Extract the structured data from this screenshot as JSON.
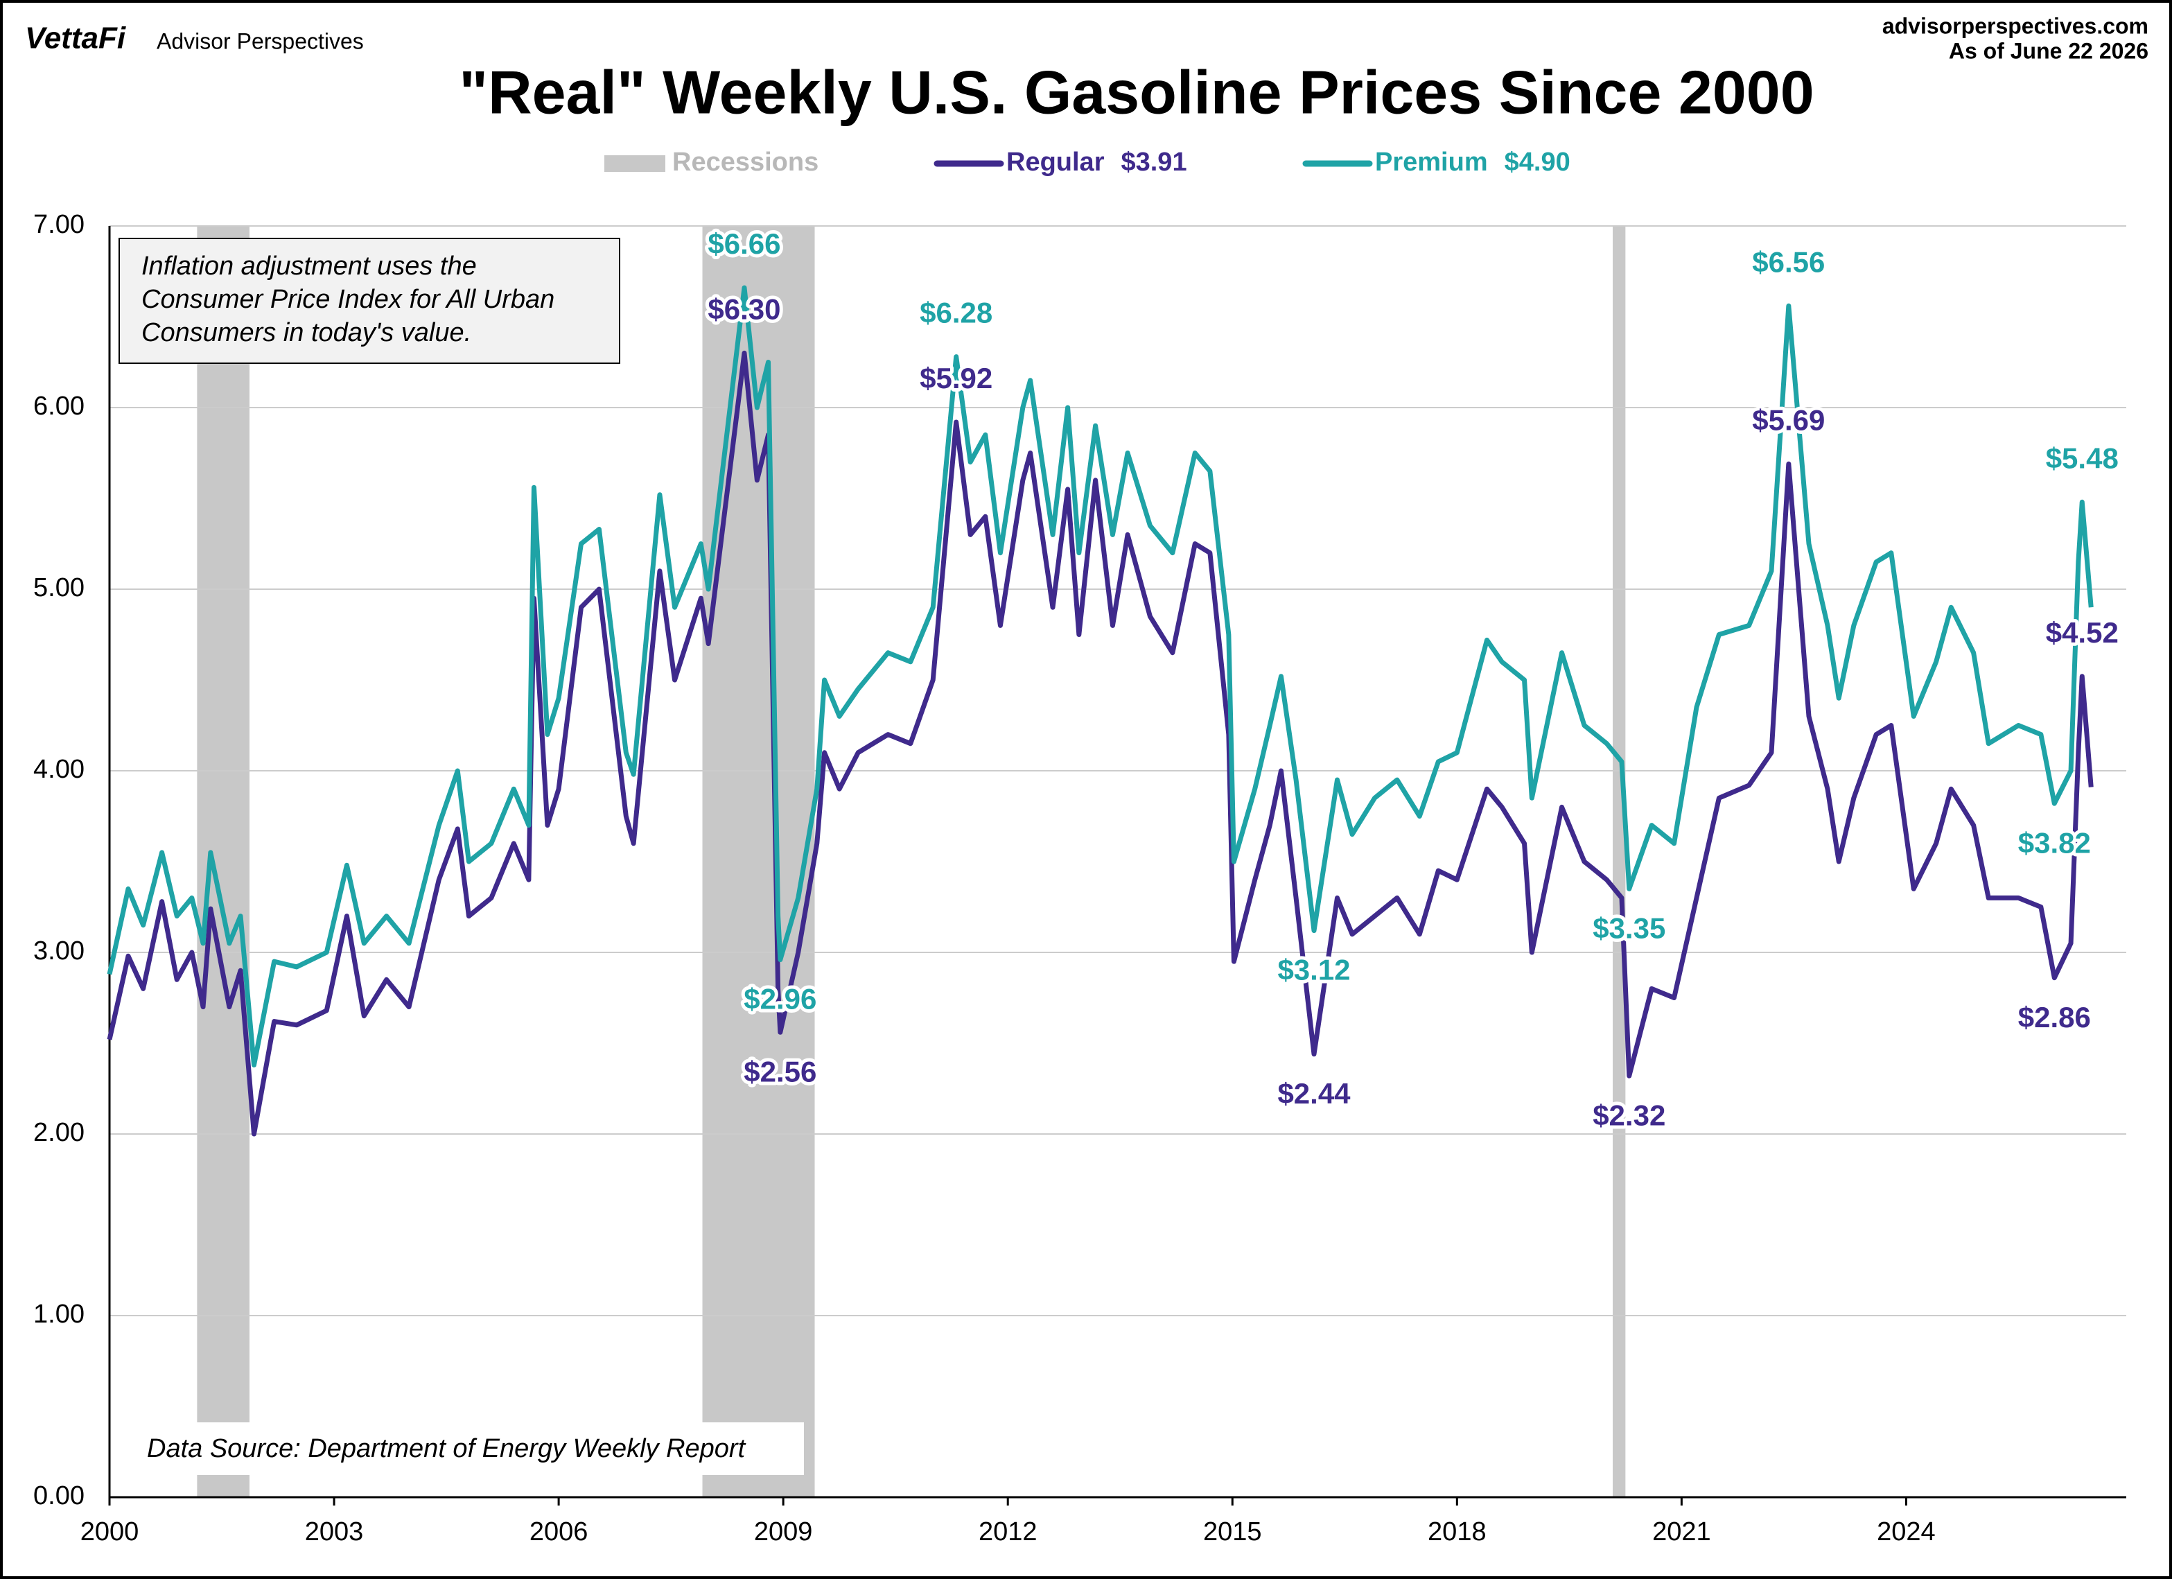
{
  "chart_data": {
    "type": "line",
    "title": "\"Real\" Weekly U.S. Gasoline Prices Since 2000",
    "brand": "VettaFi",
    "brand_sub": "Advisor Perspectives",
    "site": "advisorperspectives.com",
    "as_of": "As of June 22 2026",
    "note": [
      "Inflation adjustment uses the",
      "Consumer Price Index for All Urban",
      "Consumers in today's value."
    ],
    "source": "Data Source: Department of Energy Weekly Report",
    "recessions_name": "Recessions",
    "recessions_color": "#c8c8c8",
    "recessions": [
      [
        2001.17,
        2001.87
      ],
      [
        2007.92,
        2009.42
      ],
      [
        2020.08,
        2020.25
      ]
    ],
    "xlim": [
      2000,
      2026.94
    ],
    "xticks": [
      2000,
      2003,
      2006,
      2009,
      2012,
      2015,
      2018,
      2021,
      2024
    ],
    "ylim": [
      0,
      7
    ],
    "yticks": [
      {
        "value": 0,
        "label": "0.00"
      },
      {
        "value": 1,
        "label": "1.00"
      },
      {
        "value": 2,
        "label": "2.00"
      },
      {
        "value": 3,
        "label": "3.00"
      },
      {
        "value": 4,
        "label": "4.00"
      },
      {
        "value": 5,
        "label": "5.00"
      },
      {
        "value": 6,
        "label": "6.00"
      },
      {
        "value": 7,
        "label": "7.00"
      }
    ],
    "grid": true,
    "x": [
      2000.0,
      2000.25,
      2000.45,
      2000.7,
      2000.9,
      2001.1,
      2001.25,
      2001.35,
      2001.6,
      2001.75,
      2001.93,
      2002.2,
      2002.5,
      2002.9,
      2003.17,
      2003.4,
      2003.7,
      2004.0,
      2004.4,
      2004.65,
      2004.8,
      2005.1,
      2005.4,
      2005.6,
      2005.67,
      2005.85,
      2006.0,
      2006.3,
      2006.54,
      2006.9,
      2007.0,
      2007.35,
      2007.55,
      2007.9,
      2008.0,
      2008.48,
      2008.65,
      2008.8,
      2008.93,
      2008.96,
      2009.2,
      2009.45,
      2009.55,
      2009.75,
      2010.0,
      2010.4,
      2010.7,
      2011.0,
      2011.31,
      2011.5,
      2011.7,
      2011.9,
      2012.2,
      2012.3,
      2012.6,
      2012.8,
      2012.95,
      2013.17,
      2013.4,
      2013.6,
      2013.9,
      2014.2,
      2014.5,
      2014.7,
      2014.95,
      2015.02,
      2015.3,
      2015.5,
      2015.65,
      2015.85,
      2016.09,
      2016.4,
      2016.6,
      2016.9,
      2017.2,
      2017.5,
      2017.75,
      2018.0,
      2018.4,
      2018.6,
      2018.9,
      2019.0,
      2019.4,
      2019.7,
      2020.0,
      2020.2,
      2020.3,
      2020.6,
      2020.9,
      2021.2,
      2021.5,
      2021.9,
      2022.2,
      2022.43,
      2022.7,
      2022.95,
      2023.1,
      2023.3,
      2023.6,
      2023.8,
      2024.1,
      2024.4,
      2024.6,
      2024.9,
      2025.1,
      2025.5,
      2025.8,
      2025.98,
      2026.2,
      2026.3,
      2026.35,
      2026.47
    ],
    "series": [
      {
        "name": "Regular",
        "legend_label": "$3.91",
        "color": "#3f2a8c",
        "values": [
          2.52,
          2.98,
          2.8,
          3.28,
          2.85,
          3.0,
          2.7,
          3.24,
          2.7,
          2.9,
          2.0,
          2.62,
          2.6,
          2.68,
          3.2,
          2.65,
          2.85,
          2.7,
          3.4,
          3.68,
          3.2,
          3.3,
          3.6,
          3.4,
          4.95,
          3.7,
          3.9,
          4.9,
          5.0,
          3.75,
          3.6,
          5.1,
          4.5,
          4.95,
          4.7,
          6.3,
          5.6,
          5.85,
          2.8,
          2.56,
          3.0,
          3.6,
          4.1,
          3.9,
          4.1,
          4.2,
          4.15,
          4.5,
          5.92,
          5.3,
          5.4,
          4.8,
          5.6,
          5.75,
          4.9,
          5.55,
          4.75,
          5.6,
          4.8,
          5.3,
          4.85,
          4.65,
          5.25,
          5.2,
          4.2,
          2.95,
          3.4,
          3.7,
          4.0,
          3.3,
          2.44,
          3.3,
          3.1,
          3.2,
          3.3,
          3.1,
          3.45,
          3.4,
          3.9,
          3.8,
          3.6,
          3.0,
          3.8,
          3.5,
          3.4,
          3.3,
          2.32,
          2.8,
          2.75,
          3.3,
          3.85,
          3.92,
          4.1,
          5.69,
          4.3,
          3.9,
          3.5,
          3.85,
          4.2,
          4.25,
          3.35,
          3.6,
          3.9,
          3.7,
          3.3,
          3.3,
          3.25,
          2.86,
          3.05,
          4.1,
          4.52,
          3.91
        ],
        "value_labels": [
          null,
          null,
          null,
          null,
          null,
          null,
          null,
          null,
          null,
          null,
          null,
          null,
          null,
          null,
          null,
          null,
          null,
          null,
          null,
          null,
          null,
          null,
          null,
          null,
          null,
          null,
          null,
          null,
          null,
          null,
          null,
          null,
          null,
          null,
          null,
          "$6.30",
          null,
          null,
          null,
          "$2.56",
          null,
          null,
          null,
          null,
          null,
          null,
          null,
          null,
          "$5.92",
          null,
          null,
          null,
          null,
          null,
          null,
          null,
          null,
          null,
          null,
          null,
          null,
          null,
          null,
          null,
          null,
          null,
          null,
          null,
          null,
          null,
          "$2.44",
          null,
          null,
          null,
          null,
          null,
          null,
          null,
          null,
          null,
          null,
          null,
          null,
          null,
          null,
          null,
          "$2.32",
          null,
          null,
          null,
          null,
          null,
          null,
          "$5.69",
          null,
          null,
          null,
          null,
          null,
          null,
          null,
          null,
          null,
          null,
          null,
          null,
          null,
          "$2.86",
          null,
          null,
          "$4.52",
          null
        ]
      },
      {
        "name": "Premium",
        "legend_label": "$4.90",
        "color": "#1fa3a6",
        "values": [
          2.88,
          3.35,
          3.15,
          3.55,
          3.2,
          3.3,
          3.05,
          3.55,
          3.05,
          3.2,
          2.38,
          2.95,
          2.92,
          3.0,
          3.48,
          3.05,
          3.2,
          3.05,
          3.7,
          4.0,
          3.5,
          3.6,
          3.9,
          3.7,
          5.56,
          4.2,
          4.4,
          5.25,
          5.33,
          4.1,
          3.98,
          5.52,
          4.9,
          5.25,
          5.0,
          6.66,
          6.0,
          6.25,
          3.2,
          2.96,
          3.3,
          3.9,
          4.5,
          4.3,
          4.45,
          4.65,
          4.6,
          4.9,
          6.28,
          5.7,
          5.85,
          5.2,
          6.0,
          6.15,
          5.3,
          6.0,
          5.2,
          5.9,
          5.3,
          5.75,
          5.35,
          5.2,
          5.75,
          5.65,
          4.75,
          3.5,
          3.9,
          4.25,
          4.52,
          3.95,
          3.12,
          3.95,
          3.65,
          3.85,
          3.95,
          3.75,
          4.05,
          4.1,
          4.72,
          4.6,
          4.5,
          3.85,
          4.65,
          4.25,
          4.15,
          4.05,
          3.35,
          3.7,
          3.6,
          4.35,
          4.75,
          4.8,
          5.1,
          6.56,
          5.25,
          4.8,
          4.4,
          4.8,
          5.15,
          5.2,
          4.3,
          4.6,
          4.9,
          4.65,
          4.15,
          4.25,
          4.2,
          3.82,
          4.0,
          5.15,
          5.48,
          4.9
        ],
        "value_labels": [
          null,
          null,
          null,
          null,
          null,
          null,
          null,
          null,
          null,
          null,
          null,
          null,
          null,
          null,
          null,
          null,
          null,
          null,
          null,
          null,
          null,
          null,
          null,
          null,
          null,
          null,
          null,
          null,
          null,
          null,
          null,
          null,
          null,
          null,
          null,
          "$6.66",
          null,
          null,
          null,
          "$2.96",
          null,
          null,
          null,
          null,
          null,
          null,
          null,
          null,
          "$6.28",
          null,
          null,
          null,
          null,
          null,
          null,
          null,
          null,
          null,
          null,
          null,
          null,
          null,
          null,
          null,
          null,
          null,
          null,
          null,
          null,
          null,
          "$3.12",
          null,
          null,
          null,
          null,
          null,
          null,
          null,
          null,
          null,
          null,
          null,
          null,
          null,
          null,
          null,
          "$3.35",
          null,
          null,
          null,
          null,
          null,
          null,
          "$6.56",
          null,
          null,
          null,
          null,
          null,
          null,
          null,
          null,
          null,
          null,
          null,
          null,
          null,
          "$3.82",
          null,
          null,
          "$5.48",
          null
        ]
      }
    ]
  }
}
